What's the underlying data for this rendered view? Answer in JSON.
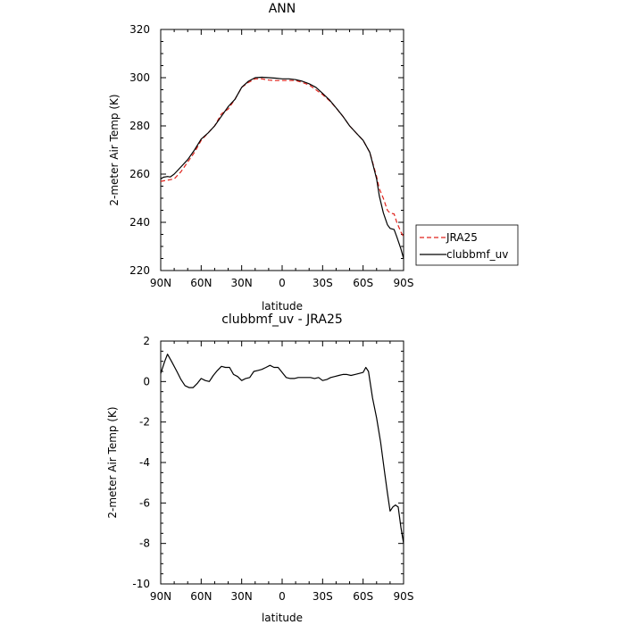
{
  "chart_data": [
    {
      "type": "line",
      "title": "ANN",
      "xlabel": "latitude",
      "ylabel": "2-meter Air Temp (K)",
      "xlim": [
        90,
        -90
      ],
      "ylim": [
        220,
        320
      ],
      "xticks": [
        90,
        60,
        30,
        0,
        -30,
        -60,
        -90
      ],
      "xticklabels": [
        "90N",
        "60N",
        "30N",
        "0",
        "30S",
        "60S",
        "90S"
      ],
      "yticks": [
        220,
        240,
        260,
        280,
        300,
        320
      ],
      "yticklabels": [
        "220",
        "240",
        "260",
        "280",
        "300",
        "320"
      ],
      "grid": false,
      "legend_position": "right",
      "series": [
        {
          "name": "JRA25",
          "color": "#e0231c",
          "dash": "dashed",
          "x": [
            90,
            85,
            80,
            75,
            70,
            65,
            60,
            55,
            50,
            45,
            40,
            35,
            30,
            25,
            20,
            15,
            10,
            5,
            0,
            -5,
            -10,
            -15,
            -20,
            -25,
            -30,
            -35,
            -40,
            -45,
            -50,
            -55,
            -60,
            -65,
            -70,
            -72,
            -75,
            -78,
            -80,
            -83,
            -85,
            -88,
            -90
          ],
          "values": [
            257,
            257.5,
            258,
            261,
            265,
            269,
            274,
            277,
            280,
            285,
            287,
            291,
            296,
            298,
            299.5,
            299.5,
            299,
            298.8,
            298.8,
            298.8,
            298.8,
            298,
            297,
            295,
            293,
            290.5,
            287.5,
            284,
            280,
            277,
            274,
            269,
            259,
            254,
            250,
            245,
            243.8,
            243.5,
            240,
            236,
            234
          ]
        },
        {
          "name": "clubbmf_uv",
          "color": "#000000",
          "dash": "solid",
          "x": [
            90,
            88,
            85,
            83,
            80,
            75,
            70,
            65,
            60,
            55,
            50,
            45,
            40,
            35,
            30,
            25,
            20,
            15,
            10,
            5,
            0,
            -5,
            -10,
            -15,
            -20,
            -25,
            -30,
            -35,
            -40,
            -45,
            -50,
            -55,
            -60,
            -65,
            -70,
            -72,
            -75,
            -78,
            -80,
            -83,
            -85,
            -88,
            -90
          ],
          "values": [
            258,
            258.7,
            259,
            258.8,
            260,
            263,
            266,
            270,
            274.5,
            277,
            280,
            284,
            288,
            291,
            296,
            298.5,
            300,
            300.2,
            300,
            299.8,
            299.5,
            299.5,
            299.2,
            298.5,
            297.5,
            296,
            293.5,
            290.8,
            287.5,
            284,
            280,
            277,
            274,
            269,
            258,
            251,
            244,
            239,
            237.5,
            237,
            234,
            229,
            225
          ]
        }
      ]
    },
    {
      "type": "line",
      "title": "clubbmf_uv - JRA25",
      "xlabel": "latitude",
      "ylabel": "2-meter Air Temp (K)",
      "xlim": [
        90,
        -90
      ],
      "ylim": [
        -10,
        2
      ],
      "xticks": [
        90,
        60,
        30,
        0,
        -30,
        -60,
        -90
      ],
      "xticklabels": [
        "90N",
        "60N",
        "30N",
        "0",
        "30S",
        "60S",
        "90S"
      ],
      "yticks": [
        -10,
        -8,
        -6,
        -4,
        -2,
        0,
        2
      ],
      "yticklabels": [
        "-10",
        "-8",
        "-6",
        "-4",
        "-2",
        "0",
        "2"
      ],
      "grid": false,
      "series": [
        {
          "color": "#000000",
          "dash": "solid",
          "x": [
            90,
            87,
            85,
            82,
            78,
            75,
            72,
            69,
            66,
            63,
            60,
            57,
            54,
            51,
            48,
            45,
            42,
            39,
            36,
            33,
            30,
            27,
            24,
            21,
            18,
            15,
            12,
            9,
            6,
            3,
            0,
            -3,
            -6,
            -9,
            -12,
            -15,
            -18,
            -21,
            -24,
            -27,
            -30,
            -33,
            -36,
            -39,
            -42,
            -45,
            -48,
            -51,
            -54,
            -57,
            -60,
            -62,
            -64,
            -67,
            -70,
            -73,
            -76,
            -78,
            -80,
            -82,
            -84,
            -86,
            -88,
            -90
          ],
          "values": [
            0.4,
            1.0,
            1.35,
            1.0,
            0.5,
            0.1,
            -0.2,
            -0.3,
            -0.3,
            -0.1,
            0.15,
            0.05,
            0.0,
            0.3,
            0.55,
            0.75,
            0.7,
            0.7,
            0.35,
            0.25,
            0.05,
            0.15,
            0.2,
            0.5,
            0.55,
            0.6,
            0.7,
            0.8,
            0.7,
            0.7,
            0.45,
            0.2,
            0.15,
            0.15,
            0.2,
            0.2,
            0.2,
            0.2,
            0.15,
            0.2,
            0.05,
            0.1,
            0.2,
            0.25,
            0.3,
            0.35,
            0.35,
            0.3,
            0.35,
            0.4,
            0.45,
            0.7,
            0.5,
            -0.8,
            -1.8,
            -3.0,
            -4.5,
            -5.5,
            -6.4,
            -6.2,
            -6.1,
            -6.2,
            -7.2,
            -8.0
          ]
        }
      ]
    }
  ]
}
